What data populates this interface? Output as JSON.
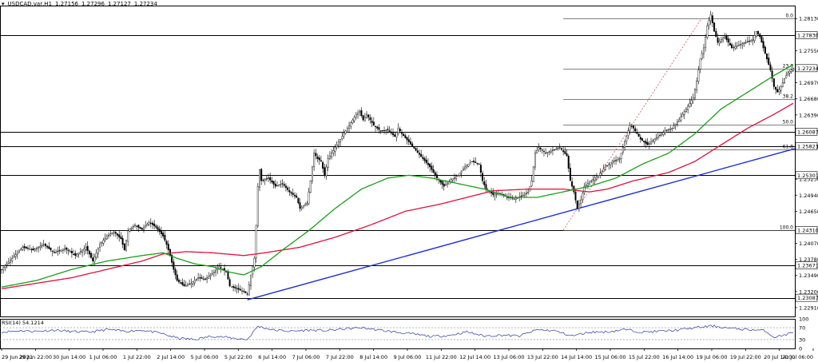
{
  "header": {
    "symbol": "USDCAD.var,H1",
    "open": "1.27156",
    "high": "1.27296",
    "low": "1.27127",
    "close": "1.27234"
  },
  "chart_data": {
    "type": "candlestick",
    "symbol": "USDCAD.var,H1",
    "timeframe": "H1",
    "ylim": [
      1.2275,
      1.2835
    ],
    "y_ticks": [
      "1.28130",
      "1.27550",
      "1.26970",
      "1.26680",
      "1.26390",
      "1.25810",
      "1.25230",
      "1.24940",
      "1.24650",
      "1.24070",
      "1.23780",
      "1.23490",
      "1.23200",
      "1.22910"
    ],
    "x_ticks": [
      "29 Jun 2021",
      "29 Jun 22:00",
      "30 Jun 14:00",
      "1 Jul 06:00",
      "1 Jul 22:00",
      "2 Jul 14:00",
      "5 Jul 06:00",
      "5 Jul 22:00",
      "6 Jul 14:00",
      "7 Jul 06:00",
      "7 Jul 22:00",
      "8 Jul 14:00",
      "9 Jul 06:00",
      "11 Jul 22:00",
      "12 Jul 14:00",
      "13 Jul 06:00",
      "13 Jul 22:00",
      "14 Jul 14:00",
      "15 Jul 06:00",
      "15 Jul 22:00",
      "16 Jul 14:00",
      "19 Jul 06:00",
      "19 Jul 22:00",
      "20 Jul 14:00",
      "21 Jul 06:00"
    ],
    "price_path": [
      [
        0,
        1.236
      ],
      [
        6,
        1.238
      ],
      [
        12,
        1.24
      ],
      [
        18,
        1.2395
      ],
      [
        24,
        1.2405
      ],
      [
        30,
        1.239
      ],
      [
        36,
        1.2398
      ],
      [
        42,
        1.2385
      ],
      [
        48,
        1.24
      ],
      [
        52,
        1.2375
      ],
      [
        56,
        1.2405
      ],
      [
        60,
        1.242
      ],
      [
        64,
        1.2428
      ],
      [
        68,
        1.2415
      ],
      [
        70,
        1.2395
      ],
      [
        72,
        1.243
      ],
      [
        76,
        1.244
      ],
      [
        80,
        1.2432
      ],
      [
        84,
        1.2445
      ],
      [
        88,
        1.2436
      ],
      [
        92,
        1.242
      ],
      [
        94,
        1.2405
      ],
      [
        96,
        1.2385
      ],
      [
        98,
        1.236
      ],
      [
        100,
        1.234
      ],
      [
        104,
        1.233
      ],
      [
        108,
        1.2335
      ],
      [
        112,
        1.2345
      ],
      [
        116,
        1.2342
      ],
      [
        120,
        1.2352
      ],
      [
        124,
        1.2365
      ],
      [
        128,
        1.2355
      ],
      [
        130,
        1.233
      ],
      [
        134,
        1.2325
      ],
      [
        138,
        1.232
      ],
      [
        140,
        1.2315
      ],
      [
        142,
        1.235
      ],
      [
        144,
        1.238
      ],
      [
        145,
        1.244
      ],
      [
        146,
        1.251
      ],
      [
        147,
        1.254
      ],
      [
        148,
        1.252
      ],
      [
        152,
        1.2525
      ],
      [
        156,
        1.251
      ],
      [
        160,
        1.2515
      ],
      [
        164,
        1.25
      ],
      [
        168,
        1.249
      ],
      [
        170,
        1.247
      ],
      [
        174,
        1.248
      ],
      [
        176,
        1.252
      ],
      [
        178,
        1.257
      ],
      [
        180,
        1.256
      ],
      [
        182,
        1.2555
      ],
      [
        184,
        1.253
      ],
      [
        186,
        1.256
      ],
      [
        190,
        1.258
      ],
      [
        194,
        1.26
      ],
      [
        198,
        1.262
      ],
      [
        202,
        1.264
      ],
      [
        204,
        1.2645
      ],
      [
        206,
        1.263
      ],
      [
        208,
        1.264
      ],
      [
        212,
        1.262
      ],
      [
        216,
        1.261
      ],
      [
        220,
        1.2612
      ],
      [
        224,
        1.26
      ],
      [
        226,
        1.2615
      ],
      [
        228,
        1.2605
      ],
      [
        232,
        1.259
      ],
      [
        236,
        1.2575
      ],
      [
        240,
        1.256
      ],
      [
        244,
        1.2545
      ],
      [
        248,
        1.2525
      ],
      [
        252,
        1.251
      ],
      [
        256,
        1.2522
      ],
      [
        260,
        1.253
      ],
      [
        264,
        1.2545
      ],
      [
        268,
        1.2555
      ],
      [
        272,
        1.255
      ],
      [
        274,
        1.252
      ],
      [
        276,
        1.2505
      ],
      [
        280,
        1.2495
      ],
      [
        284,
        1.2498
      ],
      [
        288,
        1.249
      ],
      [
        292,
        1.2488
      ],
      [
        296,
        1.2492
      ],
      [
        300,
        1.25
      ],
      [
        302,
        1.252
      ],
      [
        304,
        1.257
      ],
      [
        306,
        1.258
      ],
      [
        310,
        1.257
      ],
      [
        314,
        1.2575
      ],
      [
        318,
        1.258
      ],
      [
        322,
        1.2565
      ],
      [
        324,
        1.252
      ],
      [
        326,
        1.25
      ],
      [
        328,
        1.247
      ],
      [
        330,
        1.2485
      ],
      [
        332,
        1.251
      ],
      [
        336,
        1.252
      ],
      [
        340,
        1.253
      ],
      [
        344,
        1.2545
      ],
      [
        348,
        1.2555
      ],
      [
        352,
        1.256
      ],
      [
        354,
        1.258
      ],
      [
        356,
        1.26
      ],
      [
        358,
        1.262
      ],
      [
        360,
        1.2615
      ],
      [
        364,
        1.2595
      ],
      [
        368,
        1.2585
      ],
      [
        370,
        1.259
      ],
      [
        374,
        1.26
      ],
      [
        378,
        1.261
      ],
      [
        382,
        1.2615
      ],
      [
        386,
        1.263
      ],
      [
        390,
        1.265
      ],
      [
        394,
        1.267
      ],
      [
        396,
        1.27
      ],
      [
        398,
        1.274
      ],
      [
        400,
        1.276
      ],
      [
        402,
        1.28
      ],
      [
        404,
        1.282
      ],
      [
        406,
        1.279
      ],
      [
        408,
        1.277
      ],
      [
        412,
        1.278
      ],
      [
        416,
        1.276
      ],
      [
        420,
        1.2765
      ],
      [
        424,
        1.277
      ],
      [
        428,
        1.2775
      ],
      [
        430,
        1.279
      ],
      [
        432,
        1.278
      ],
      [
        434,
        1.276
      ],
      [
        436,
        1.274
      ],
      [
        438,
        1.272
      ],
      [
        440,
        1.269
      ],
      [
        442,
        1.268
      ],
      [
        444,
        1.269
      ],
      [
        446,
        1.2705
      ],
      [
        448,
        1.2715
      ],
      [
        451,
        1.2723
      ]
    ],
    "ma_fast_path": [
      [
        0,
        1.2328
      ],
      [
        20,
        1.234
      ],
      [
        40,
        1.236
      ],
      [
        60,
        1.2375
      ],
      [
        80,
        1.2385
      ],
      [
        92,
        1.239
      ],
      [
        100,
        1.238
      ],
      [
        110,
        1.237
      ],
      [
        120,
        1.2365
      ],
      [
        130,
        1.2355
      ],
      [
        138,
        1.235
      ],
      [
        148,
        1.2365
      ],
      [
        160,
        1.2395
      ],
      [
        175,
        1.243
      ],
      [
        190,
        1.247
      ],
      [
        205,
        1.2505
      ],
      [
        220,
        1.2525
      ],
      [
        232,
        1.253
      ],
      [
        245,
        1.2525
      ],
      [
        260,
        1.2515
      ],
      [
        275,
        1.2505
      ],
      [
        290,
        1.249
      ],
      [
        305,
        1.249
      ],
      [
        320,
        1.25
      ],
      [
        335,
        1.251
      ],
      [
        350,
        1.2525
      ],
      [
        365,
        1.255
      ],
      [
        380,
        1.257
      ],
      [
        395,
        1.2605
      ],
      [
        410,
        1.265
      ],
      [
        425,
        1.268
      ],
      [
        440,
        1.271
      ],
      [
        451,
        1.273
      ]
    ],
    "ma_slow_path": [
      [
        0,
        1.2325
      ],
      [
        20,
        1.2335
      ],
      [
        40,
        1.2345
      ],
      [
        60,
        1.236
      ],
      [
        80,
        1.2375
      ],
      [
        92,
        1.2388
      ],
      [
        105,
        1.2392
      ],
      [
        120,
        1.239
      ],
      [
        138,
        1.2385
      ],
      [
        150,
        1.239
      ],
      [
        170,
        1.24
      ],
      [
        190,
        1.2418
      ],
      [
        210,
        1.244
      ],
      [
        230,
        1.2465
      ],
      [
        250,
        1.2478
      ],
      [
        265,
        1.249
      ],
      [
        280,
        1.2502
      ],
      [
        300,
        1.2505
      ],
      [
        320,
        1.2505
      ],
      [
        335,
        1.25
      ],
      [
        345,
        1.2505
      ],
      [
        360,
        1.252
      ],
      [
        380,
        1.2535
      ],
      [
        395,
        1.2555
      ],
      [
        410,
        1.2585
      ],
      [
        425,
        1.2615
      ],
      [
        440,
        1.264
      ],
      [
        451,
        1.266
      ]
    ],
    "rsi": {
      "label": "RSI(14) 54.1214",
      "ylim": [
        0,
        100
      ],
      "ticks": [
        "100",
        "70",
        "30",
        "0"
      ],
      "levels": [
        70,
        30
      ],
      "path": [
        [
          0,
          55
        ],
        [
          10,
          60
        ],
        [
          20,
          58
        ],
        [
          30,
          62
        ],
        [
          40,
          57
        ],
        [
          50,
          55
        ],
        [
          60,
          64
        ],
        [
          70,
          58
        ],
        [
          80,
          62
        ],
        [
          90,
          52
        ],
        [
          100,
          35
        ],
        [
          110,
          30
        ],
        [
          120,
          42
        ],
        [
          130,
          36
        ],
        [
          140,
          30
        ],
        [
          146,
          75
        ],
        [
          155,
          62
        ],
        [
          165,
          58
        ],
        [
          175,
          62
        ],
        [
          185,
          60
        ],
        [
          195,
          66
        ],
        [
          205,
          70
        ],
        [
          215,
          62
        ],
        [
          225,
          55
        ],
        [
          235,
          48
        ],
        [
          245,
          40
        ],
        [
          255,
          44
        ],
        [
          265,
          56
        ],
        [
          275,
          42
        ],
        [
          285,
          45
        ],
        [
          295,
          42
        ],
        [
          305,
          63
        ],
        [
          315,
          60
        ],
        [
          325,
          42
        ],
        [
          335,
          55
        ],
        [
          345,
          56
        ],
        [
          355,
          64
        ],
        [
          365,
          55
        ],
        [
          375,
          58
        ],
        [
          385,
          62
        ],
        [
          395,
          70
        ],
        [
          405,
          76
        ],
        [
          415,
          68
        ],
        [
          425,
          64
        ],
        [
          435,
          60
        ],
        [
          440,
          38
        ],
        [
          445,
          44
        ],
        [
          451,
          54
        ]
      ]
    },
    "horizontal_levels": [
      {
        "price": 1.2783,
        "label": "1.27830"
      },
      {
        "price": 1.26087,
        "label": "1.26087"
      },
      {
        "price": 1.25823,
        "label": "1.25823"
      },
      {
        "price": 1.25301,
        "label": "1.25301"
      },
      {
        "price": 1.2431,
        "label": "1.24310"
      },
      {
        "price": 1.23671,
        "label": "1.23671"
      },
      {
        "price": 1.23087,
        "label": "1.23087"
      }
    ],
    "current_price": {
      "price": 1.27234,
      "label": "1.27234"
    },
    "fibonacci": {
      "low": 1.2431,
      "high": 1.2813,
      "from_bar": 320,
      "to_bar": 451,
      "levels": [
        {
          "ratio": 0.0,
          "label": "0.0"
        },
        {
          "ratio": 0.236,
          "label": "23.6"
        },
        {
          "ratio": 0.382,
          "label": "38.2"
        },
        {
          "ratio": 0.5,
          "label": "50.0"
        },
        {
          "ratio": 0.618,
          "label": "61.8"
        },
        {
          "ratio": 1.0,
          "label": "100.0"
        }
      ]
    },
    "trendline": {
      "from": [
        140,
        1.2305
      ],
      "to": [
        451,
        1.2578
      ]
    },
    "colors": {
      "candle": "#000000",
      "ma_fast": "#1a9e1a",
      "ma_slow": "#e0103a",
      "trendline": "#1f2ed6",
      "fib": "#555555",
      "fib_dash": "#e05050",
      "rsi": "#2a3aa0",
      "level": "#000000"
    }
  }
}
